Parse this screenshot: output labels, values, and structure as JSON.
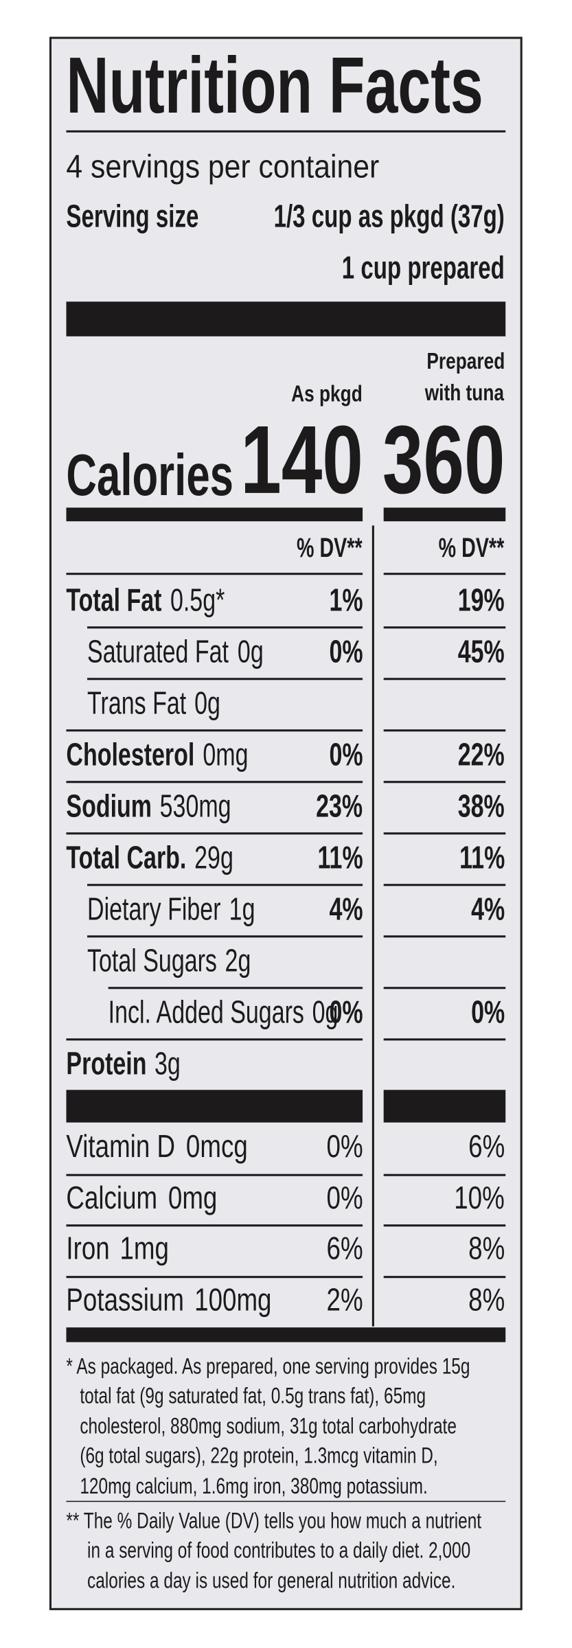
{
  "header": {
    "title": "Nutrition Facts",
    "servings": "4 servings per container",
    "serving_size_label": "Serving size",
    "serving_size": "1/3 cup as pkgd (37g)",
    "serving_size_prepared": "1 cup prepared"
  },
  "columns": {
    "pkgd": "As pkgd",
    "prepared": [
      "Prepared",
      "with tuna"
    ]
  },
  "calories": {
    "label": "Calories",
    "pkgd": "140",
    "prepared": "360"
  },
  "dv_header": {
    "pkgd": "% DV**",
    "prepared": "% DV**"
  },
  "nutrients": [
    {
      "name": "Total Fat",
      "amount": "0.5g*",
      "dv_pkgd": "1%",
      "dv_prepared": "19%",
      "bold": true,
      "indent": 0
    },
    {
      "name": "Saturated Fat",
      "amount": "0g",
      "dv_pkgd": "0%",
      "dv_prepared": "45%",
      "bold": false,
      "indent": 1
    },
    {
      "name": "Trans Fat",
      "amount": "0g",
      "bold": false,
      "indent": 1
    },
    {
      "name": "Cholesterol",
      "amount": "0mg",
      "dv_pkgd": "0%",
      "dv_prepared": "22%",
      "bold": true,
      "indent": 0
    },
    {
      "name": "Sodium",
      "amount": "530mg",
      "dv_pkgd": "23%",
      "dv_prepared": "38%",
      "bold": true,
      "indent": 0
    },
    {
      "name": "Total Carb.",
      "amount": "29g",
      "dv_pkgd": "11%",
      "dv_prepared": "11%",
      "bold": true,
      "indent": 0
    },
    {
      "name": "Dietary Fiber",
      "amount": "1g",
      "dv_pkgd": "4%",
      "dv_prepared": "4%",
      "bold": false,
      "indent": 1
    },
    {
      "name": "Total Sugars",
      "amount": "2g",
      "bold": false,
      "indent": 1
    },
    {
      "name": "Incl. Added Sugars",
      "amount": "0g",
      "dv_pkgd": "0%",
      "dv_prepared": "0%",
      "bold": false,
      "indent": 2
    },
    {
      "name": "Protein",
      "amount": "3g",
      "bold": true,
      "indent": 0
    }
  ],
  "vitamins": [
    {
      "name": "Vitamin D",
      "amount": "0mcg",
      "dv_pkgd": "0%",
      "dv_prepared": "6%"
    },
    {
      "name": "Calcium",
      "amount": "0mg",
      "dv_pkgd": "0%",
      "dv_prepared": "10%"
    },
    {
      "name": "Iron",
      "amount": "1mg",
      "dv_pkgd": "6%",
      "dv_prepared": "8%"
    },
    {
      "name": "Potassium",
      "amount": "100mg",
      "dv_pkgd": "2%",
      "dv_prepared": "8%"
    }
  ],
  "footnotes": [
    [
      "* As packaged. As prepared, one serving provides 15g",
      "total fat (9g saturated fat, 0.5g trans fat), 65mg",
      "cholesterol, 880mg sodium, 31g total carbohydrate",
      "(6g total sugars), 22g protein, 1.3mcg vitamin D,",
      "120mg calcium, 1.6mg iron, 380mg potassium."
    ],
    [
      "** The % Daily Value (DV) tells you how much a nutrient",
      "in a serving of food contributes to a daily diet. 2,000",
      "calories a day is used for general nutrition advice."
    ]
  ]
}
